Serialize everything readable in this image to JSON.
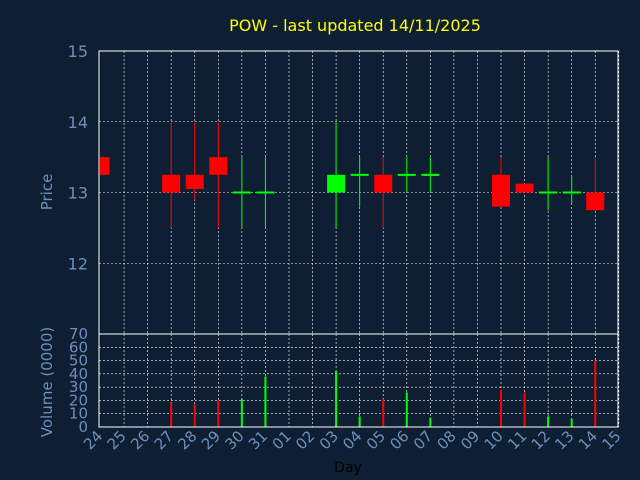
{
  "chart_data": [
    {
      "type": "candlestick",
      "title": "POW - last updated 14/11/2025",
      "ylabel": "Price",
      "ylim": [
        11,
        15
      ],
      "yticks": [
        12,
        13,
        14,
        15
      ],
      "grid": true,
      "x_categories": [
        "24",
        "25",
        "26",
        "27",
        "28",
        "29",
        "30",
        "31",
        "01",
        "02",
        "03",
        "04",
        "05",
        "06",
        "07",
        "08",
        "09",
        "10",
        "11",
        "12",
        "13",
        "14",
        "15"
      ],
      "candles": [
        {
          "day": "24",
          "open": 13.5,
          "close": 13.25,
          "high": 13.5,
          "low": 13.25
        },
        {
          "day": "27",
          "open": 13.25,
          "close": 13.0,
          "high": 14.0,
          "low": 12.5
        },
        {
          "day": "28",
          "open": 13.25,
          "close": 13.05,
          "high": 14.0,
          "low": 12.9
        },
        {
          "day": "29",
          "open": 13.5,
          "close": 13.25,
          "high": 14.0,
          "low": 12.5
        },
        {
          "day": "30",
          "open": 13.0,
          "close": 13.0,
          "high": 13.5,
          "low": 12.5
        },
        {
          "day": "31",
          "open": 13.0,
          "close": 13.0,
          "high": 13.5,
          "low": 12.5
        },
        {
          "day": "03",
          "open": 13.0,
          "close": 13.25,
          "high": 14.0,
          "low": 12.5
        },
        {
          "day": "04",
          "open": 13.25,
          "close": 13.25,
          "high": 13.5,
          "low": 12.8
        },
        {
          "day": "05",
          "open": 13.25,
          "close": 13.0,
          "high": 13.5,
          "low": 12.5
        },
        {
          "day": "06",
          "open": 13.25,
          "close": 13.25,
          "high": 13.5,
          "low": 13.0
        },
        {
          "day": "07",
          "open": 13.25,
          "close": 13.25,
          "high": 13.5,
          "low": 13.0
        },
        {
          "day": "10",
          "open": 13.25,
          "close": 12.8,
          "high": 13.5,
          "low": 12.8
        },
        {
          "day": "11",
          "open": 13.125,
          "close": 13.0,
          "high": 13.125,
          "low": 13.0
        },
        {
          "day": "12",
          "open": 13.0,
          "close": 13.0,
          "high": 13.5,
          "low": 12.75
        },
        {
          "day": "13",
          "open": 13.0,
          "close": 13.0,
          "high": 13.25,
          "low": 12.85
        },
        {
          "day": "14",
          "open": 13.0,
          "close": 12.75,
          "high": 13.5,
          "low": 12.75
        }
      ],
      "colors": {
        "up": "#00ff00",
        "down": "#ff0000",
        "neutral": "#00ff00"
      }
    },
    {
      "type": "bar",
      "title": "",
      "xlabel": "Day",
      "ylabel": "Volume (0000)",
      "ylim": [
        0,
        70
      ],
      "yticks": [
        0,
        10,
        20,
        30,
        40,
        50,
        60,
        70
      ],
      "grid": true,
      "categories": [
        "24",
        "25",
        "26",
        "27",
        "28",
        "29",
        "30",
        "31",
        "01",
        "02",
        "03",
        "04",
        "05",
        "06",
        "07",
        "08",
        "09",
        "10",
        "11",
        "12",
        "13",
        "14",
        "15"
      ],
      "bars": [
        {
          "day": "27",
          "value": 18,
          "color": "#ff0000"
        },
        {
          "day": "28",
          "value": 17,
          "color": "#ff0000"
        },
        {
          "day": "29",
          "value": 20,
          "color": "#ff0000"
        },
        {
          "day": "30",
          "value": 21,
          "color": "#00ff00"
        },
        {
          "day": "31",
          "value": 38,
          "color": "#00ff00"
        },
        {
          "day": "03",
          "value": 42,
          "color": "#00ff00"
        },
        {
          "day": "04",
          "value": 8,
          "color": "#00ff00"
        },
        {
          "day": "05",
          "value": 21,
          "color": "#ff0000"
        },
        {
          "day": "06",
          "value": 26,
          "color": "#00ff00"
        },
        {
          "day": "07",
          "value": 7,
          "color": "#00ff00"
        },
        {
          "day": "10",
          "value": 28,
          "color": "#ff0000"
        },
        {
          "day": "11",
          "value": 26,
          "color": "#ff0000"
        },
        {
          "day": "12",
          "value": 8,
          "color": "#00ff00"
        },
        {
          "day": "13",
          "value": 6,
          "color": "#00ff00"
        },
        {
          "day": "14",
          "value": 50,
          "color": "#ff0000"
        }
      ]
    }
  ],
  "style": {
    "background": "#0f1f33",
    "title_color": "#ffff00",
    "axis_text_color": "#6f8fb8",
    "xlabel_color": "#000000",
    "frame_color": "#ffffff",
    "grid_color": "#ffffff"
  }
}
